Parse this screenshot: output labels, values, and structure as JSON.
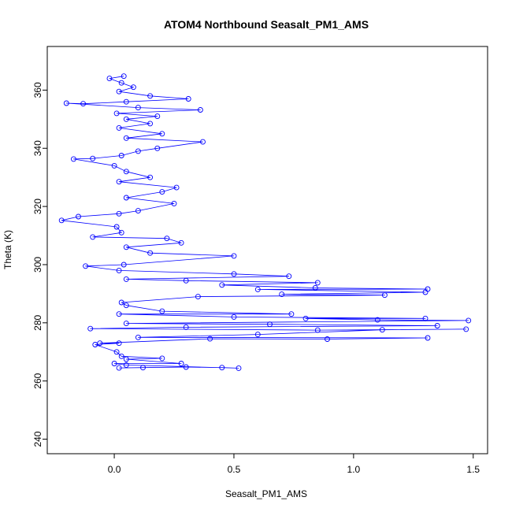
{
  "chart_data": {
    "type": "scatter",
    "title": "ATOM4 Northbound Seasalt_PM1_AMS",
    "xlabel": "Seasalt_PM1_AMS",
    "ylabel": "Theta (K)",
    "xlim": [
      -0.28,
      1.56
    ],
    "ylim": [
      235,
      375
    ],
    "x_ticks": [
      {
        "value": 0.0,
        "label": "0.0"
      },
      {
        "value": 0.5,
        "label": "0.5"
      },
      {
        "value": 1.0,
        "label": "1.0"
      },
      {
        "value": 1.5,
        "label": "1.5"
      }
    ],
    "y_ticks": [
      {
        "value": 240,
        "label": "240"
      },
      {
        "value": 260,
        "label": "260"
      },
      {
        "value": 280,
        "label": "280"
      },
      {
        "value": 300,
        "label": "300"
      },
      {
        "value": 320,
        "label": "320"
      },
      {
        "value": 340,
        "label": "340"
      },
      {
        "value": 360,
        "label": "360"
      }
    ],
    "grid": false,
    "legend": "none",
    "style": "points connected by lines (type b)",
    "color": "#0000ff",
    "series": [
      {
        "points": [
          [
            0.02,
            264.5
          ],
          [
            0.12,
            264.6
          ],
          [
            0.3,
            264.8
          ],
          [
            0.45,
            264.6
          ],
          [
            0.52,
            264.4
          ],
          [
            0.05,
            265.5
          ],
          [
            0.0,
            266.0
          ],
          [
            0.28,
            266.0
          ],
          [
            0.05,
            267.5
          ],
          [
            0.2,
            267.8
          ],
          [
            0.03,
            268.5
          ],
          [
            0.01,
            270.0
          ],
          [
            -0.08,
            272.5
          ],
          [
            0.02,
            273.0
          ],
          [
            -0.06,
            273.0
          ],
          [
            0.4,
            274.5
          ],
          [
            0.89,
            274.4
          ],
          [
            1.31,
            274.8
          ],
          [
            0.1,
            275.0
          ],
          [
            0.6,
            276.0
          ],
          [
            1.12,
            277.6
          ],
          [
            1.47,
            277.8
          ],
          [
            0.85,
            277.5
          ],
          [
            -0.1,
            278.0
          ],
          [
            0.3,
            278.5
          ],
          [
            1.35,
            279.0
          ],
          [
            0.65,
            279.5
          ],
          [
            0.05,
            279.8
          ],
          [
            1.48,
            280.8
          ],
          [
            1.1,
            281.0
          ],
          [
            0.8,
            281.5
          ],
          [
            1.3,
            281.5
          ],
          [
            0.5,
            282.0
          ],
          [
            0.02,
            283.0
          ],
          [
            0.74,
            283.0
          ],
          [
            0.2,
            284.0
          ],
          [
            0.05,
            286.0
          ],
          [
            0.03,
            287.0
          ],
          [
            0.35,
            289.0
          ],
          [
            1.13,
            289.5
          ],
          [
            0.7,
            289.8
          ],
          [
            1.3,
            290.5
          ],
          [
            0.6,
            291.5
          ],
          [
            1.31,
            291.6
          ],
          [
            0.84,
            292.0
          ],
          [
            0.45,
            293.0
          ],
          [
            0.85,
            293.8
          ],
          [
            0.3,
            294.5
          ],
          [
            0.05,
            295.0
          ],
          [
            0.73,
            296.0
          ],
          [
            0.5,
            296.8
          ],
          [
            0.02,
            298.0
          ],
          [
            -0.12,
            299.5
          ],
          [
            0.04,
            300.0
          ],
          [
            0.5,
            303.0
          ],
          [
            0.15,
            304.0
          ],
          [
            0.05,
            306.0
          ],
          [
            0.28,
            307.5
          ],
          [
            0.22,
            309.0
          ],
          [
            -0.09,
            309.5
          ],
          [
            0.03,
            311.0
          ],
          [
            0.01,
            313.0
          ],
          [
            -0.22,
            315.2
          ],
          [
            -0.15,
            316.5
          ],
          [
            0.02,
            317.5
          ],
          [
            0.1,
            318.5
          ],
          [
            0.25,
            321.0
          ],
          [
            0.05,
            323.0
          ],
          [
            0.2,
            325.0
          ],
          [
            0.26,
            326.5
          ],
          [
            0.02,
            328.5
          ],
          [
            0.15,
            330.0
          ],
          [
            0.05,
            332.0
          ],
          [
            0.0,
            334.0
          ],
          [
            -0.17,
            336.3
          ],
          [
            -0.09,
            336.5
          ],
          [
            0.03,
            337.5
          ],
          [
            0.1,
            339.0
          ],
          [
            0.18,
            340.0
          ],
          [
            0.37,
            342.2
          ],
          [
            0.05,
            343.5
          ],
          [
            0.2,
            345.0
          ],
          [
            0.02,
            347.0
          ],
          [
            0.15,
            348.5
          ],
          [
            0.05,
            350.0
          ],
          [
            0.18,
            351.0
          ],
          [
            0.01,
            352.0
          ],
          [
            0.36,
            353.2
          ],
          [
            0.1,
            354.0
          ],
          [
            -0.2,
            355.5
          ],
          [
            -0.13,
            355.3
          ],
          [
            0.05,
            356.0
          ],
          [
            0.31,
            357.0
          ],
          [
            0.15,
            358.0
          ],
          [
            0.02,
            359.5
          ],
          [
            0.08,
            361.0
          ],
          [
            0.03,
            362.5
          ],
          [
            -0.02,
            364.0
          ],
          [
            0.04,
            364.8
          ]
        ]
      }
    ]
  }
}
